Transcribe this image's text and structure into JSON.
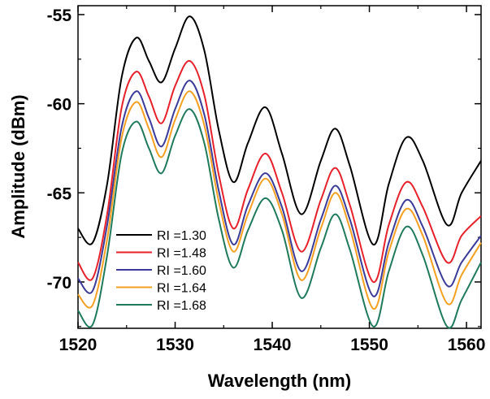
{
  "chart_data": {
    "type": "line",
    "xlabel": "Wavelength (nm)",
    "ylabel": "Amplitude (dBm)",
    "xlim": [
      1520,
      1561.5
    ],
    "ylim": [
      -72.6,
      -54.5
    ],
    "xticks": [
      1520,
      1530,
      1540,
      1550,
      1560
    ],
    "xtick_labels": [
      "1520",
      "1530",
      "1540",
      "1550",
      "1560"
    ],
    "yticks": [
      -55,
      -60,
      -65,
      -70
    ],
    "ytick_labels": [
      "-55",
      "-60",
      "-65",
      "-70"
    ],
    "grid": false,
    "legend_position": "lower-left",
    "x": [
      1520,
      1521.5,
      1523,
      1524.5,
      1526,
      1527.3,
      1528.6,
      1530,
      1531.5,
      1533,
      1534.5,
      1536,
      1537.5,
      1539.3,
      1541,
      1543,
      1545,
      1546.5,
      1548,
      1550.4,
      1552,
      1553.8,
      1555.5,
      1558,
      1559.5,
      1561.5
    ],
    "series": [
      {
        "name": "RI =1.30",
        "color": "#000000",
        "values": [
          -67.0,
          -67.8,
          -64.5,
          -58.5,
          -56.3,
          -57.6,
          -58.8,
          -56.9,
          -55.1,
          -57.0,
          -61.5,
          -64.4,
          -62.2,
          -60.2,
          -62.8,
          -66.2,
          -63.2,
          -61.4,
          -63.5,
          -67.9,
          -64.5,
          -61.9,
          -63.2,
          -66.8,
          -65.0,
          -63.2
        ]
      },
      {
        "name": "RI =1.48",
        "color": "#e8202a",
        "values": [
          -68.9,
          -69.8,
          -66.2,
          -60.2,
          -58.2,
          -59.6,
          -61.1,
          -59.0,
          -57.6,
          -59.5,
          -64.0,
          -67.0,
          -64.8,
          -62.8,
          -65.0,
          -68.3,
          -65.4,
          -63.6,
          -65.7,
          -70.0,
          -66.8,
          -64.4,
          -65.8,
          -68.9,
          -67.4,
          -66.3
        ]
      },
      {
        "name": "RI =1.60",
        "color": "#3a3a9a",
        "values": [
          -69.8,
          -70.5,
          -66.8,
          -61.3,
          -59.3,
          -60.8,
          -62.4,
          -60.3,
          -58.7,
          -60.6,
          -64.9,
          -67.9,
          -65.7,
          -63.9,
          -65.8,
          -69.4,
          -66.5,
          -64.6,
          -66.5,
          -70.8,
          -67.8,
          -65.4,
          -66.9,
          -70.2,
          -68.9,
          -67.4
        ]
      },
      {
        "name": "RI =1.64",
        "color": "#f5a021",
        "values": [
          -70.7,
          -71.3,
          -67.6,
          -61.9,
          -59.9,
          -61.4,
          -63.0,
          -60.9,
          -59.3,
          -61.2,
          -65.5,
          -68.3,
          -66.2,
          -64.2,
          -66.2,
          -69.9,
          -67.0,
          -65.0,
          -67.0,
          -71.5,
          -68.3,
          -65.9,
          -67.4,
          -71.2,
          -69.6,
          -67.8
        ]
      },
      {
        "name": "RI =1.68",
        "color": "#1f7a5a",
        "values": [
          -71.6,
          -72.4,
          -68.5,
          -62.8,
          -61.0,
          -62.5,
          -63.9,
          -61.8,
          -60.3,
          -62.2,
          -66.5,
          -69.2,
          -67.1,
          -65.3,
          -67.1,
          -70.9,
          -68.1,
          -66.2,
          -68.2,
          -72.5,
          -69.4,
          -66.9,
          -68.5,
          -72.5,
          -71.0,
          -68.9
        ]
      }
    ]
  }
}
